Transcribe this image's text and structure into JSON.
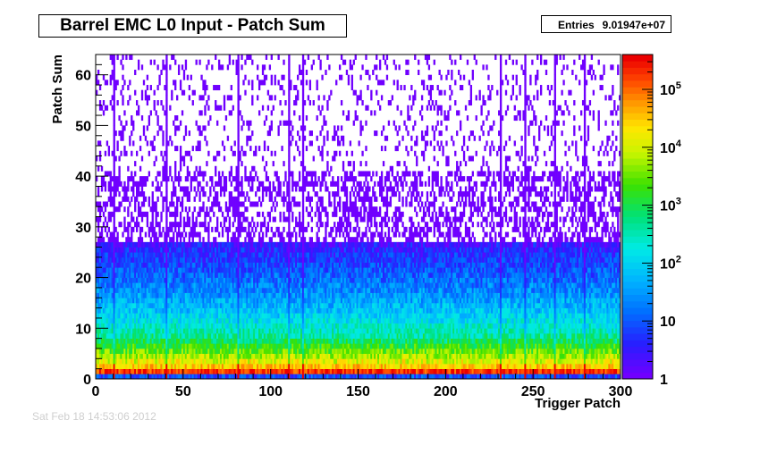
{
  "title": "Barrel EMC L0 Input - Patch Sum",
  "stats": {
    "label": "Entries",
    "value": "9.01947e+07"
  },
  "footer_text": "Sat Feb 18 14:53:06 2012",
  "chart_data": {
    "type": "heatmap",
    "title": "Barrel EMC L0 Input - Patch Sum",
    "xlabel": "Trigger Patch",
    "ylabel": "Patch Sum",
    "xlim": [
      0,
      300
    ],
    "ylim": [
      0,
      64
    ],
    "x_ticks": [
      0,
      50,
      100,
      150,
      200,
      250,
      300
    ],
    "y_ticks": [
      0,
      10,
      20,
      30,
      40,
      50,
      60
    ],
    "z_scale": "log",
    "zlim": [
      1,
      400000
    ],
    "z_ticks": [
      {
        "value": 1,
        "label": "1"
      },
      {
        "value": 10,
        "label": "10"
      },
      {
        "value": 100,
        "label": "10",
        "exp": "2"
      },
      {
        "value": 1000,
        "label": "10",
        "exp": "3"
      },
      {
        "value": 10000,
        "label": "10",
        "exp": "4"
      },
      {
        "value": 100000,
        "label": "10",
        "exp": "5"
      }
    ],
    "entries": 90194700,
    "approx_profile_by_patch_sum": [
      {
        "patch_sum": 0,
        "counts_per_bin": 8
      },
      {
        "patch_sum": 1,
        "counts_per_bin": 200000
      },
      {
        "patch_sum": 2,
        "counts_per_bin": 30000
      },
      {
        "patch_sum": 3,
        "counts_per_bin": 12000
      },
      {
        "patch_sum": 5,
        "counts_per_bin": 3000
      },
      {
        "patch_sum": 8,
        "counts_per_bin": 400
      },
      {
        "patch_sum": 12,
        "counts_per_bin": 100
      },
      {
        "patch_sum": 16,
        "counts_per_bin": 30
      },
      {
        "patch_sum": 20,
        "counts_per_bin": 12
      },
      {
        "patch_sum": 25,
        "counts_per_bin": 4
      },
      {
        "patch_sum": 30,
        "counts_per_bin": 1
      },
      {
        "patch_sum": 40,
        "counts_per_bin": 1
      },
      {
        "patch_sum": 63,
        "counts_per_bin": 1
      }
    ],
    "hot_patches": [
      10,
      40,
      81,
      110,
      118,
      231,
      245,
      262,
      279
    ]
  }
}
